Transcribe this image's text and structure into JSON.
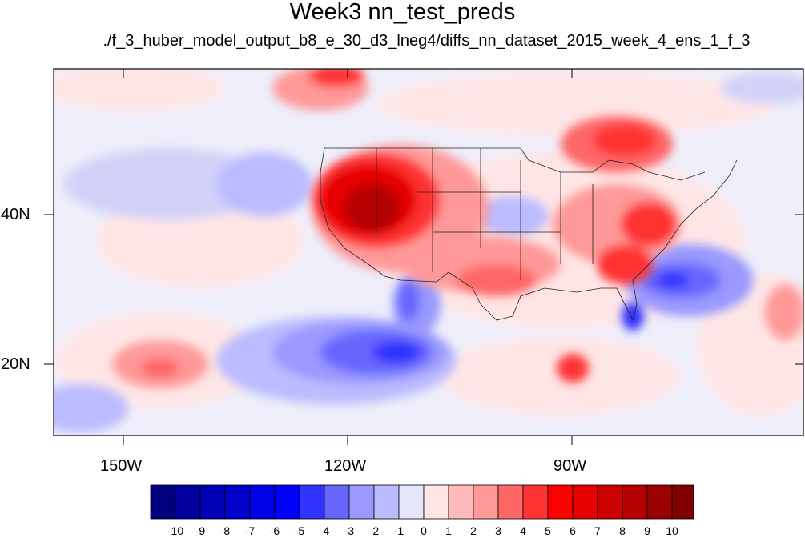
{
  "title": "Week3 nn_test_preds",
  "subtitle": "./f_3_huber_model_output_b8_e_30_d3_lneg4/diffs_nn_dataset_2015_week_4_ens_1_f_3",
  "axes": {
    "lon_labels": [
      "150W",
      "120W",
      "90W"
    ],
    "lat_labels": [
      "40N",
      "20N"
    ]
  },
  "colorbar": {
    "levels": [
      "-10",
      "-9",
      "-8",
      "-7",
      "-6",
      "-5",
      "-4",
      "-3",
      "-2",
      "-1",
      "0",
      "1",
      "2",
      "3",
      "4",
      "5",
      "6",
      "7",
      "8",
      "9",
      "10"
    ],
    "colors": [
      "#000080",
      "#00009c",
      "#0000b4",
      "#0000cd",
      "#0000e6",
      "#0000ff",
      "#3333ff",
      "#6666ff",
      "#9999ff",
      "#bbbbff",
      "#e6e6fa",
      "#ffe6e6",
      "#ffbbbb",
      "#ff9999",
      "#ff6666",
      "#ff3333",
      "#ff0000",
      "#e60000",
      "#cd0000",
      "#b40000",
      "#9c0000",
      "#800000"
    ]
  }
}
